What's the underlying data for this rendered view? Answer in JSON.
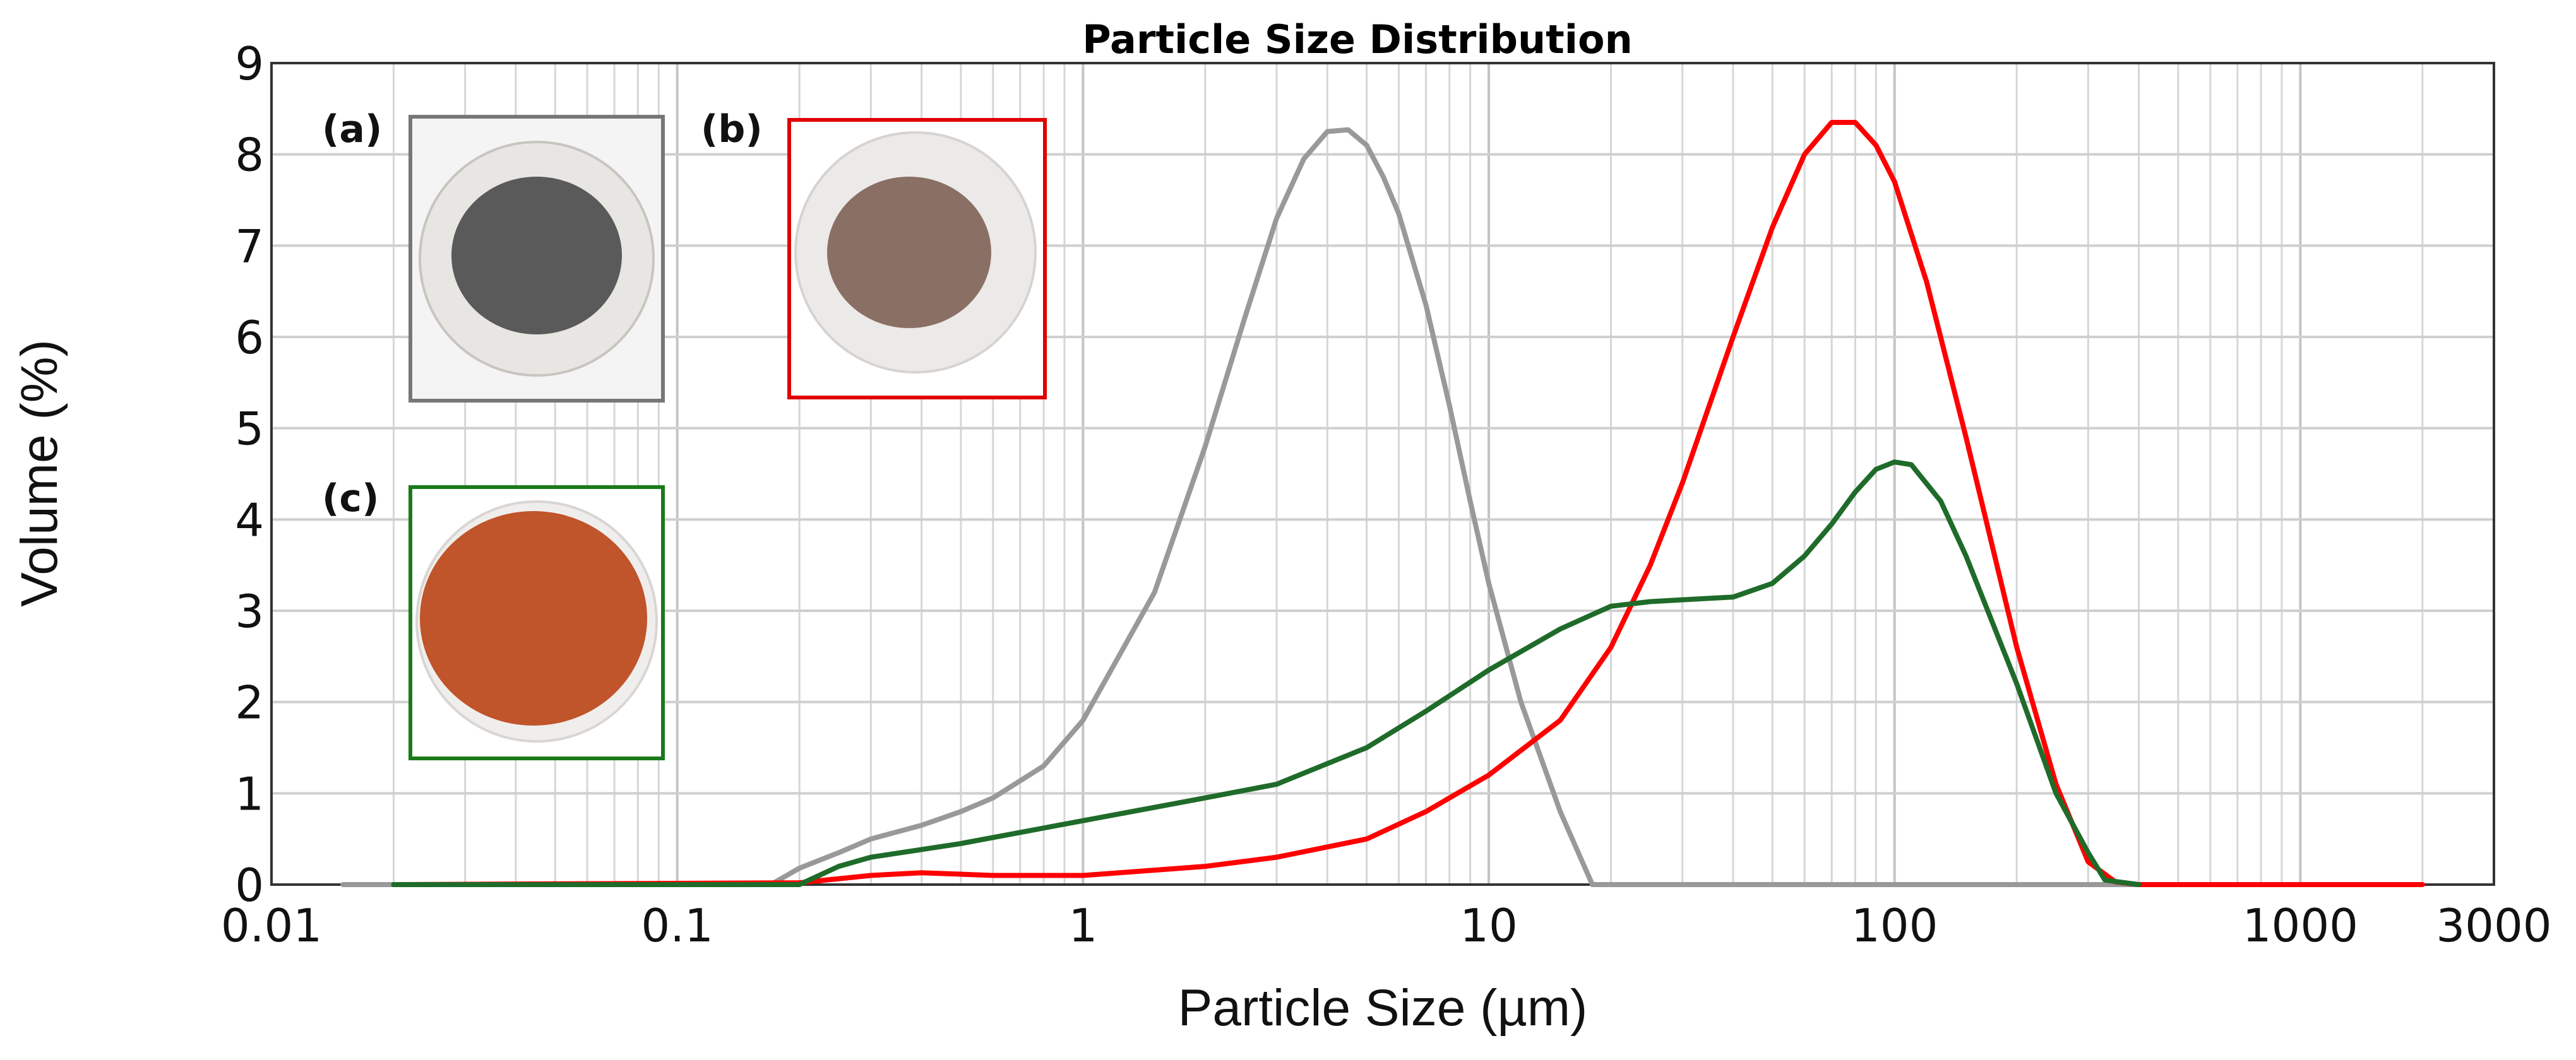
{
  "chart_data": {
    "type": "line",
    "title": "Particle Size Distribution",
    "xlabel": "Particle Size (µm)",
    "ylabel": "Volume (%)",
    "x_scale": "log",
    "xlim": [
      0.01,
      3000
    ],
    "ylim": [
      0,
      9
    ],
    "x_ticks": [
      "0.01",
      "0.1",
      "1",
      "10",
      "100",
      "1000",
      "3000"
    ],
    "x_tick_values": [
      0.01,
      0.1,
      1,
      10,
      100,
      1000,
      3000
    ],
    "y_ticks": [
      "0",
      "1",
      "2",
      "3",
      "4",
      "5",
      "6",
      "7",
      "8",
      "9"
    ],
    "grid": true,
    "series": [
      {
        "color": "#999999",
        "x": [
          0.015,
          0.17,
          0.2,
          0.25,
          0.3,
          0.4,
          0.5,
          0.6,
          0.8,
          1.0,
          1.5,
          2.0,
          2.5,
          3.0,
          3.5,
          4.0,
          4.5,
          5.0,
          5.5,
          6.0,
          7.0,
          8.0,
          9.0,
          10.0,
          12.0,
          15.0,
          17.0,
          18.0,
          400
        ],
        "y": [
          0.0,
          0.0,
          0.18,
          0.35,
          0.5,
          0.65,
          0.8,
          0.95,
          1.3,
          1.8,
          3.2,
          4.8,
          6.2,
          7.3,
          7.95,
          8.25,
          8.27,
          8.1,
          7.75,
          7.35,
          6.35,
          5.25,
          4.2,
          3.3,
          2.0,
          0.8,
          0.25,
          0.0,
          0.0
        ]
      },
      {
        "color": "#ff0000",
        "x": [
          0.02,
          0.2,
          0.3,
          0.4,
          0.6,
          1.0,
          2.0,
          3.0,
          5.0,
          7.0,
          10.0,
          15.0,
          20.0,
          25.0,
          30.0,
          40.0,
          50.0,
          60.0,
          70.0,
          80.0,
          90.0,
          100.0,
          120.0,
          150.0,
          200.0,
          250.0,
          300.0,
          350.0,
          400.0,
          1000.0,
          2000.0
        ],
        "y": [
          0.0,
          0.02,
          0.1,
          0.13,
          0.1,
          0.1,
          0.2,
          0.3,
          0.5,
          0.8,
          1.2,
          1.8,
          2.6,
          3.5,
          4.4,
          6.0,
          7.2,
          8.0,
          8.35,
          8.35,
          8.1,
          7.7,
          6.6,
          4.9,
          2.6,
          1.1,
          0.25,
          0.03,
          0.0,
          0.0,
          0.0
        ]
      },
      {
        "color": "#1f6b2a",
        "x": [
          0.02,
          0.2,
          0.25,
          0.3,
          0.5,
          1.0,
          2.0,
          3.0,
          5.0,
          7.0,
          10.0,
          15.0,
          20.0,
          25.0,
          30.0,
          40.0,
          50.0,
          60.0,
          70.0,
          80.0,
          90.0,
          100.0,
          110.0,
          130.0,
          150.0,
          200.0,
          250.0,
          300.0,
          330.0,
          400.0
        ],
        "y": [
          0.0,
          0.0,
          0.2,
          0.3,
          0.45,
          0.7,
          0.95,
          1.1,
          1.5,
          1.9,
          2.35,
          2.8,
          3.05,
          3.1,
          3.12,
          3.15,
          3.3,
          3.6,
          3.95,
          4.3,
          4.55,
          4.63,
          4.6,
          4.2,
          3.6,
          2.2,
          1.0,
          0.35,
          0.05,
          0.0
        ]
      }
    ]
  },
  "insets": [
    {
      "label": "(a)",
      "frame_color": "#777777",
      "powder_color": "#5a5a5a"
    },
    {
      "label": "(b)",
      "frame_color": "#e00000",
      "powder_color": "#8a6f64"
    },
    {
      "label": "(c)",
      "frame_color": "#1a7a1a",
      "powder_color": "#c0542a"
    }
  ]
}
